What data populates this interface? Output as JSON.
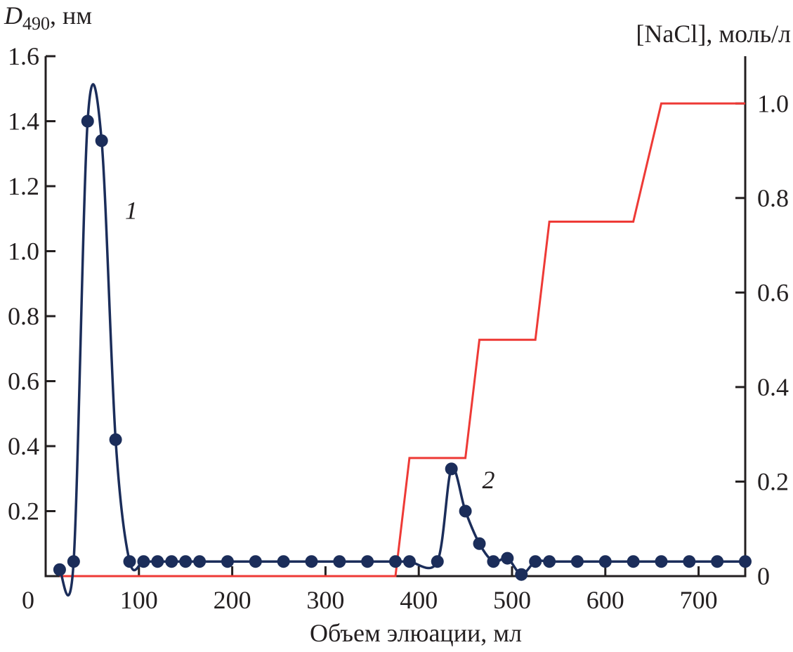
{
  "chart_data": {
    "type": "line",
    "title": "",
    "xlabel": "Объем элюации, мл",
    "ylabel": {
      "symbol": "D",
      "subscript": "490",
      "unit": ", нм"
    },
    "y2label": "[NaCl], моль/л",
    "xlim": [
      0,
      750
    ],
    "ylim": [
      0,
      1.6
    ],
    "y2lim": [
      0,
      1.1
    ],
    "grid": false,
    "x_ticks": [
      "0",
      "100",
      "200",
      "300",
      "400",
      "500",
      "600",
      "700"
    ],
    "x_tick_values": [
      0,
      100,
      200,
      300,
      400,
      500,
      600,
      700
    ],
    "y_ticks": [
      "1.6",
      "1.4",
      "1.2",
      "1.0",
      "0.8",
      "0.6",
      "0.4",
      "0.2"
    ],
    "y_tick_values": [
      1.6,
      1.4,
      1.2,
      1.0,
      0.8,
      0.6,
      0.4,
      0.2
    ],
    "y2_ticks": [
      "1.0",
      "0.8",
      "0.6",
      "0.4",
      "0.2",
      "0"
    ],
    "y2_tick_values": [
      1.0,
      0.8,
      0.6,
      0.4,
      0.2,
      0
    ],
    "series": [
      {
        "name": "D490",
        "axis": "left",
        "color": "#1b2d5a",
        "x": [
          15,
          30,
          45,
          60,
          75,
          90,
          105,
          120,
          135,
          150,
          165,
          195,
          225,
          255,
          285,
          315,
          345,
          375,
          390,
          420,
          435,
          450,
          465,
          480,
          495,
          510,
          525,
          540,
          570,
          600,
          630,
          660,
          690,
          720,
          750
        ],
        "y": [
          0.02,
          0.045,
          1.4,
          1.34,
          0.42,
          0.045,
          0.045,
          0.045,
          0.045,
          0.045,
          0.045,
          0.045,
          0.045,
          0.045,
          0.045,
          0.045,
          0.045,
          0.045,
          0.045,
          0.045,
          0.33,
          0.2,
          0.1,
          0.045,
          0.055,
          0.005,
          0.045,
          0.045,
          0.045,
          0.045,
          0.045,
          0.045,
          0.045,
          0.045,
          0.045
        ]
      },
      {
        "name": "NaCl",
        "axis": "right",
        "color": "#ee3a36",
        "x": [
          15,
          375,
          390,
          450,
          465,
          525,
          540,
          630,
          660,
          750
        ],
        "y": [
          0,
          0,
          0.25,
          0.25,
          0.5,
          0.5,
          0.75,
          0.75,
          1.0,
          1.0
        ]
      }
    ],
    "annotations": [
      {
        "text": "1",
        "x": 85,
        "y": 1.1
      },
      {
        "text": "2",
        "x": 468,
        "y": 0.27
      }
    ]
  }
}
